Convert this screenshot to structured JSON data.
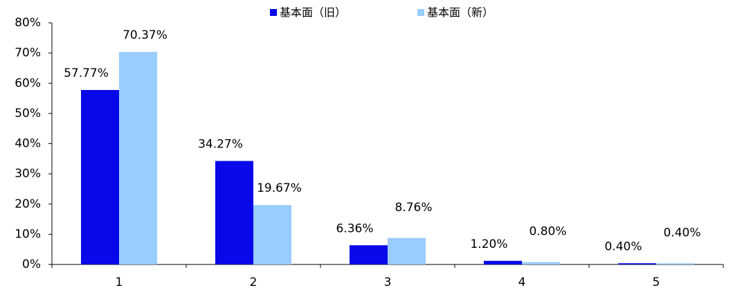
{
  "chart_data": {
    "type": "bar",
    "categories": [
      "1",
      "2",
      "3",
      "4",
      "5"
    ],
    "series": [
      {
        "name": "基本面（旧）",
        "color": "#0808e8",
        "values": [
          57.77,
          34.27,
          6.36,
          1.2,
          0.4
        ],
        "value_labels": [
          "57.77%",
          "34.27%",
          "6.36%",
          "1.20%",
          "0.40%"
        ]
      },
      {
        "name": "基本面（新）",
        "color": "#99ccff",
        "values": [
          70.37,
          19.67,
          8.76,
          0.8,
          0.4
        ],
        "value_labels": [
          "70.37%",
          "19.67%",
          "8.76%",
          "0.80%",
          "0.40%"
        ]
      }
    ],
    "ylim": [
      0,
      80
    ],
    "yticks": [
      {
        "value": 0,
        "label": "0%"
      },
      {
        "value": 10,
        "label": "10%"
      },
      {
        "value": 20,
        "label": "20%"
      },
      {
        "value": 30,
        "label": "30%"
      },
      {
        "value": 40,
        "label": "40%"
      },
      {
        "value": 50,
        "label": "50%"
      },
      {
        "value": 60,
        "label": "60%"
      },
      {
        "value": 70,
        "label": "70%"
      },
      {
        "value": 80,
        "label": "80%"
      }
    ],
    "grid": false,
    "legend": "top"
  }
}
